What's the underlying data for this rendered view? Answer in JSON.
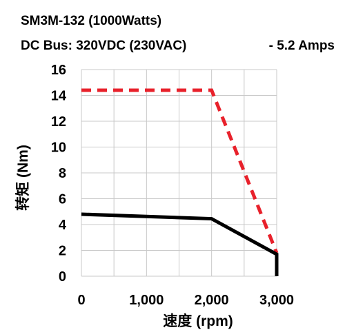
{
  "header": {
    "model": "SM3M-132 (1000Watts)",
    "bus": "DC Bus: 320VDC (230VAC)",
    "amps": "-   5.2 Amps"
  },
  "chart_data": {
    "type": "line",
    "xlabel": "速度 (rpm)",
    "ylabel": "转矩 (Nm)",
    "xlim": [
      0,
      3000
    ],
    "ylim": [
      0,
      16
    ],
    "xticks": [
      "0",
      "1,000",
      "2,000",
      "3,000"
    ],
    "yticks": [
      "0",
      "2",
      "4",
      "6",
      "8",
      "10",
      "12",
      "14",
      "16"
    ],
    "grid": true,
    "legend": "none",
    "series": [
      {
        "style": "dashed",
        "color": "#e8212b",
        "x": [
          0,
          2000,
          3000
        ],
        "y": [
          14.4,
          14.4,
          1.8
        ]
      },
      {
        "style": "solid",
        "color": "#000000",
        "x": [
          0,
          2000,
          3000,
          3000
        ],
        "y": [
          4.8,
          4.45,
          1.7,
          0
        ]
      }
    ]
  }
}
